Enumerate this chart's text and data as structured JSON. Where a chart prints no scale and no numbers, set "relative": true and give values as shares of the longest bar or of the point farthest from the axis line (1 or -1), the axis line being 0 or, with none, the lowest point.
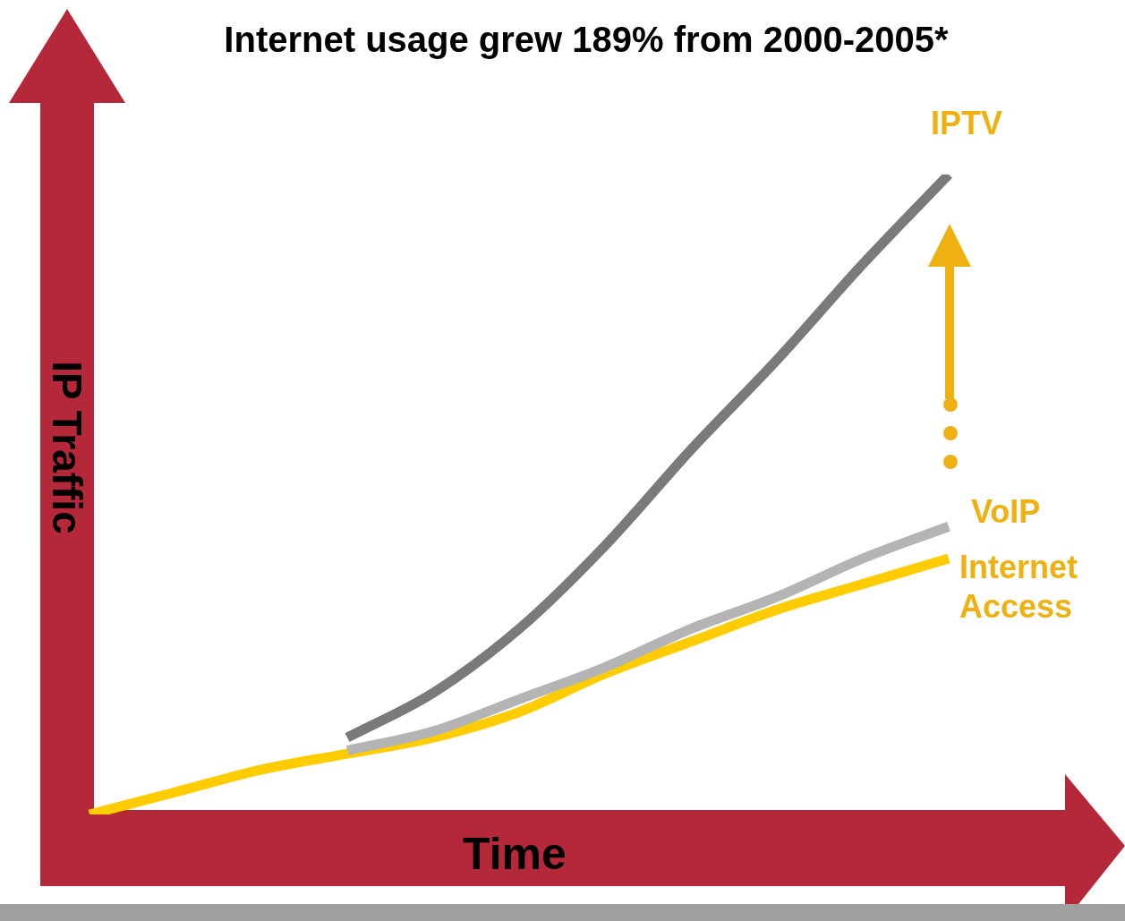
{
  "chart_data": {
    "type": "line",
    "title": "Internet usage grew 189% from 2000-2005*",
    "xlabel": "Time",
    "ylabel": "IP Traffic",
    "relative": true,
    "legend": false,
    "marker": "none",
    "categories": [
      null,
      null,
      null,
      null,
      null,
      null,
      null,
      null,
      null,
      null,
      null
    ],
    "series": [
      {
        "name": "IPTV",
        "color": "#7a7a7a",
        "values": [
          null,
          null,
          null,
          0.12,
          0.19,
          0.29,
          0.42,
          0.57,
          0.71,
          0.86,
          1
        ]
      },
      {
        "name": "VoIP",
        "color": "#b4b4b4",
        "values": [
          null,
          null,
          null,
          0.1,
          0.13,
          0.18,
          0.23,
          0.29,
          0.34,
          0.4,
          0.45
        ]
      },
      {
        "name": "Internet Access",
        "color": "#ffcc00",
        "values": [
          0,
          0.035,
          0.07,
          0.095,
          0.12,
          0.16,
          0.22,
          0.27,
          0.32,
          0.36,
          0.4
        ]
      }
    ]
  }
}
